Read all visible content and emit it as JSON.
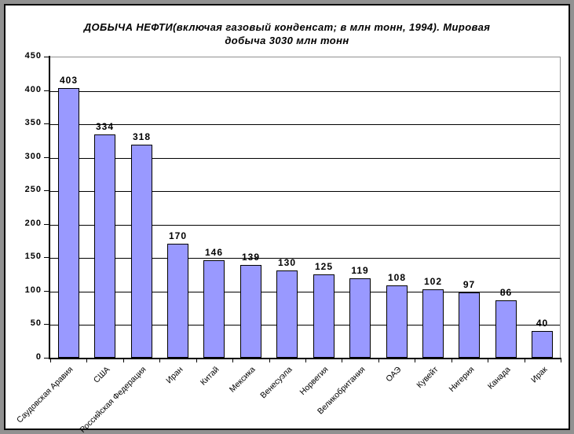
{
  "chart_data": {
    "type": "bar",
    "title": "ДОБЫЧА НЕФТИ(включая газовый конденсат; в млн тонн, 1994). Мировая добыча 3030 млн тонн",
    "title_lines": [
      "ДОБЫЧА НЕФТИ(включая газовый конденсат; в млн тонн, 1994). Мировая",
      "добыча 3030 млн тонн"
    ],
    "categories": [
      "Саудовская Аравия",
      "США",
      "Российская Федерация",
      "Иран",
      "Китай",
      "Мексика",
      "Венесуэла",
      "Норвегия",
      "Великобритания",
      "ОАЭ",
      "Кувейт",
      "Нигерия",
      "Канада",
      "Ирак"
    ],
    "values": [
      403,
      334,
      318,
      170,
      146,
      139,
      130,
      125,
      119,
      108,
      102,
      97,
      86,
      40
    ],
    "y_tick_labels": [
      "0",
      "50",
      "100",
      "150",
      "200",
      "250",
      "300",
      "350",
      "400",
      "450"
    ],
    "xlabel": "",
    "ylabel": "",
    "ylim": [
      0,
      450
    ],
    "ytick_step": 50,
    "grid": true,
    "legend_position": "none",
    "bar_color": "#9999FF",
    "bar_border_color": "#000000",
    "gridline_color": "#000000",
    "plot_frame_color": "#909090",
    "axis_color": "#000000"
  }
}
